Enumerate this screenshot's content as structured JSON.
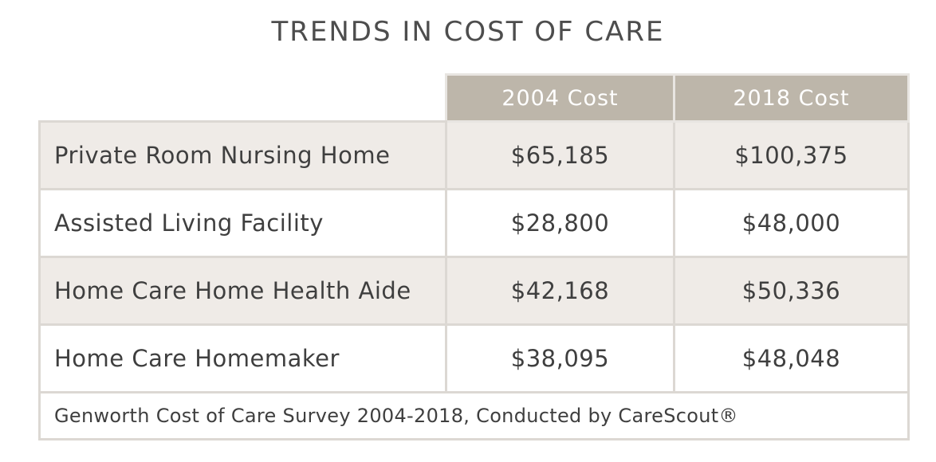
{
  "title": "TRENDS IN COST OF CARE",
  "colors": {
    "header_bg": "#bdb6aa",
    "header_text": "#ffffff",
    "row_shaded": "#efebe7",
    "row_plain": "#ffffff",
    "border": "#dcd8d3",
    "text": "#3f3f3f"
  },
  "chart_data": {
    "type": "table",
    "title": "TRENDS IN COST OF CARE",
    "columns": [
      "",
      "2004 Cost",
      "2018 Cost"
    ],
    "rows": [
      {
        "label": "Private Room Nursing Home",
        "cost_2004": "$65,185",
        "cost_2018": "$100,375"
      },
      {
        "label": "Assisted Living Facility",
        "cost_2004": "$28,800",
        "cost_2018": "$48,000"
      },
      {
        "label": "Home Care Home Health Aide",
        "cost_2004": "$42,168",
        "cost_2018": "$50,336"
      },
      {
        "label": "Home Care Homemaker",
        "cost_2004": "$38,095",
        "cost_2018": "$48,048"
      }
    ],
    "footnote": "Genworth Cost of Care Survey 2004-2018, Conducted by CareScout®"
  }
}
